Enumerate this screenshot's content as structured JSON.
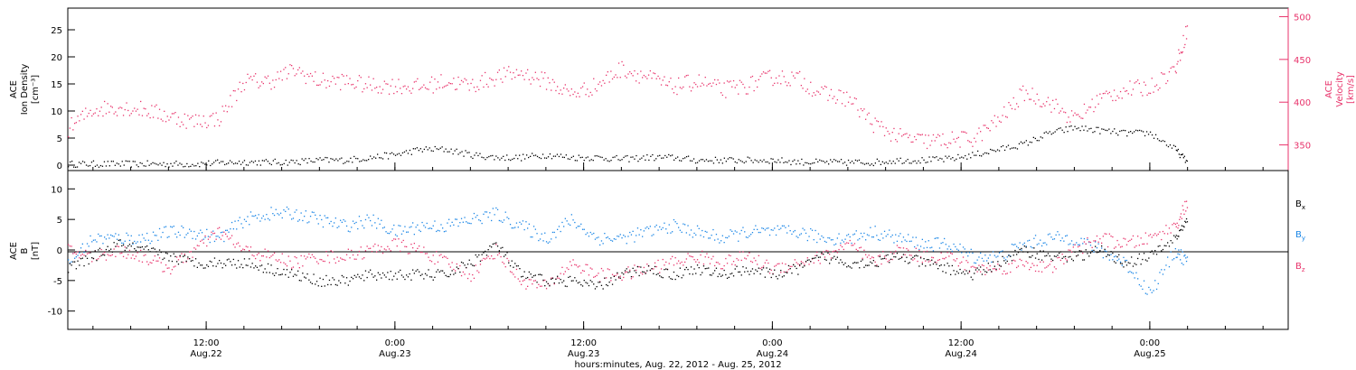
{
  "colors": {
    "density": "#000000",
    "velocity": "#e8336b",
    "bx": "#000000",
    "by": "#1a86e6",
    "bz": "#e8336b",
    "axis": "#000000"
  },
  "xaxis": {
    "title": "hours:minutes, Aug. 22, 2012 - Aug. 25, 2012",
    "range_hours": [
      0,
      97
    ],
    "ticks": [
      {
        "h": 11,
        "time": "12:00",
        "date": "Aug.22"
      },
      {
        "h": 26,
        "time": "0:00",
        "date": "Aug.23"
      },
      {
        "h": 41,
        "time": "12:00",
        "date": "Aug.23"
      },
      {
        "h": 56,
        "time": "0:00",
        "date": "Aug.24"
      },
      {
        "h": 71,
        "time": "12:00",
        "date": "Aug.24"
      },
      {
        "h": 86,
        "time": "0:00",
        "date": "Aug.25"
      }
    ]
  },
  "chart_data": [
    {
      "type": "scatter",
      "panel": "plasma",
      "ylabel_left": [
        "ACE",
        "Ion Density",
        "[cm⁻³]"
      ],
      "ylabel_right": [
        "ACE",
        "Velocity",
        "[km/s]"
      ],
      "ylim_left": [
        -1,
        29
      ],
      "ylim_right": [
        320,
        510
      ],
      "yticks_left": [
        0,
        5,
        10,
        15,
        20,
        25
      ],
      "yticks_right": [
        350,
        400,
        450,
        500
      ],
      "x_hours": [
        0,
        2,
        4,
        6,
        8,
        10,
        12,
        14,
        16,
        18,
        20,
        22,
        24,
        26,
        28,
        30,
        32,
        34,
        36,
        38,
        40,
        42,
        44,
        46,
        48,
        50,
        52,
        54,
        56,
        58,
        60,
        62,
        64,
        66,
        68,
        70,
        72,
        74,
        76,
        78,
        80,
        82,
        84,
        86,
        88,
        89
      ],
      "series": [
        {
          "key": "density",
          "axis": "left",
          "values": [
            0.3,
            0.3,
            0.3,
            0.3,
            0.3,
            0.3,
            0.5,
            0.7,
            0.6,
            0.7,
            1.0,
            1.0,
            1.5,
            2.0,
            3.0,
            3.0,
            2.0,
            1.5,
            1.5,
            2.0,
            1.5,
            1.5,
            1.2,
            1.5,
            1.5,
            1.0,
            1.0,
            1.0,
            1.0,
            0.7,
            0.6,
            0.6,
            0.6,
            1.0,
            1.0,
            1.2,
            2.0,
            3.0,
            4.0,
            6.0,
            7.0,
            6.5,
            6.0,
            6.0,
            3.0,
            0.5
          ]
        },
        {
          "key": "velocity",
          "axis": "right",
          "values": [
            370,
            392,
            395,
            392,
            384,
            378,
            382,
            425,
            425,
            438,
            425,
            425,
            420,
            420,
            418,
            425,
            420,
            430,
            435,
            425,
            410,
            420,
            440,
            430,
            418,
            425,
            415,
            420,
            430,
            428,
            410,
            405,
            375,
            360,
            355,
            356,
            358,
            380,
            412,
            400,
            380,
            405,
            415,
            418,
            440,
            490
          ]
        }
      ]
    },
    {
      "type": "scatter",
      "panel": "magnetic",
      "ylabel_left": [
        "ACE",
        "B",
        "[nT]"
      ],
      "ylim": [
        -13,
        13
      ],
      "yticks": [
        -10,
        -5,
        0,
        5,
        10
      ],
      "legend": [
        "B",
        "B",
        "B"
      ],
      "legend_sub": [
        "x",
        "y",
        "z"
      ],
      "x_hours": [
        0,
        2,
        4,
        6,
        8,
        10,
        12,
        14,
        16,
        18,
        20,
        22,
        24,
        26,
        28,
        30,
        32,
        34,
        36,
        38,
        40,
        42,
        44,
        46,
        48,
        50,
        52,
        54,
        56,
        58,
        60,
        62,
        64,
        66,
        68,
        70,
        72,
        74,
        76,
        78,
        80,
        82,
        84,
        86,
        88,
        89
      ],
      "series": [
        {
          "key": "bx",
          "values": [
            -3,
            -1,
            1,
            0,
            -1,
            -2,
            -2,
            -2,
            -3,
            -4,
            -5,
            -5,
            -4,
            -4,
            -4,
            -4,
            -2,
            1,
            -4,
            -5,
            -5,
            -6,
            -4,
            -3,
            -4,
            -3,
            -4,
            -3,
            -4,
            -3,
            -1,
            -2,
            -2,
            -1,
            -2,
            -3,
            -4,
            -2,
            0,
            -1,
            -1,
            0,
            -2,
            -1,
            2,
            5
          ]
        },
        {
          "key": "by",
          "values": [
            -2,
            2,
            2,
            2,
            3,
            3,
            2,
            5,
            6,
            6,
            5,
            4,
            5,
            3,
            4,
            4,
            5,
            6,
            4,
            2,
            5,
            2,
            2,
            3,
            4,
            3,
            2,
            3,
            3,
            3,
            2,
            2,
            3,
            2,
            1,
            1,
            -1,
            -1,
            1,
            2,
            2,
            0,
            -2,
            -7,
            0,
            -2
          ]
        },
        {
          "key": "bz",
          "values": [
            0,
            -1,
            0,
            -1,
            -3,
            0,
            3,
            0,
            -1,
            -2,
            -1,
            -1,
            0,
            1,
            0,
            -2,
            -4,
            0,
            -5,
            -6,
            -2,
            -4,
            -4,
            -3,
            -2,
            -1,
            -2,
            -1,
            -3,
            -2,
            -1,
            1,
            -2,
            0,
            -1,
            -1,
            -3,
            -3,
            -2,
            -3,
            0,
            2,
            1,
            2,
            4,
            8
          ]
        }
      ]
    }
  ]
}
